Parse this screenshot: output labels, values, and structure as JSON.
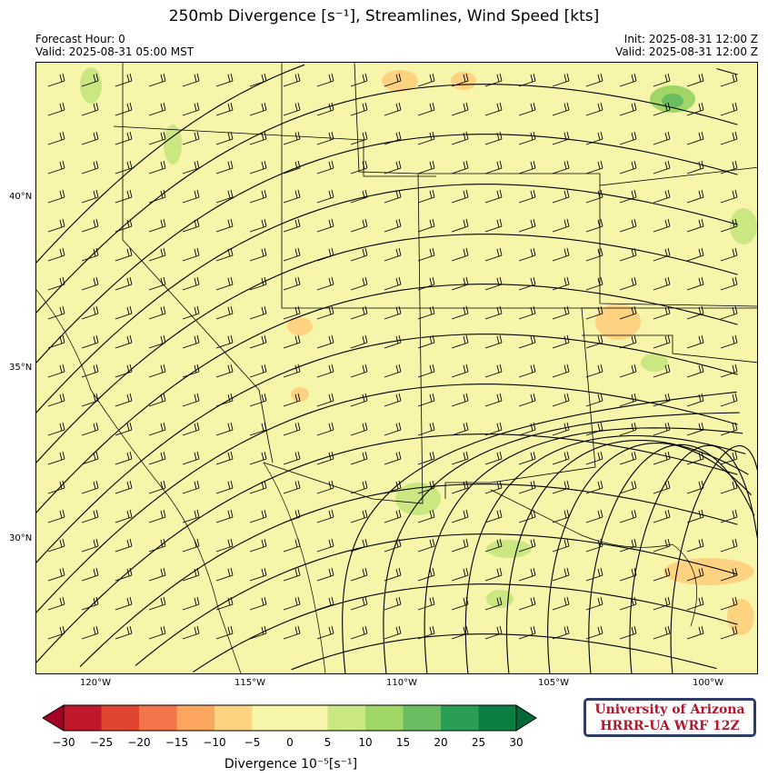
{
  "header": {
    "title": "250mb Divergence [s⁻¹], Streamlines, Wind Speed [kts]",
    "forecast_hour": "Forecast Hour: 0",
    "valid_local": "Valid: 2025-08-31 05:00 MST",
    "init": "Init: 2025-08-31 12:00 Z",
    "valid_utc": "Valid: 2025-08-31 12:00 Z"
  },
  "map": {
    "lat_labels": [
      "40°N",
      "35°N",
      "30°N"
    ],
    "lon_labels": [
      "120°W",
      "115°W",
      "110°W",
      "105°W",
      "100°W"
    ],
    "background_color": "#f6f5a9",
    "layers": [
      "divergence-fill",
      "streamlines",
      "wind-barbs",
      "state-borders",
      "coastlines"
    ]
  },
  "colorbar": {
    "ticks": [
      "−30",
      "−25",
      "−20",
      "−15",
      "−10",
      "−5",
      "0",
      "5",
      "10",
      "15",
      "20",
      "25",
      "30"
    ],
    "colors": [
      "#c0172b",
      "#e04530",
      "#f4744a",
      "#fba65e",
      "#fdd381",
      "#f6f5a9",
      "#f6f5a9",
      "#cbe781",
      "#a0d568",
      "#6bbd62",
      "#2b9e56",
      "#0b7e43"
    ],
    "under_color": "#a50026",
    "over_color": "#006837",
    "label": "Divergence 10⁻⁵[s⁻¹]"
  },
  "logo": {
    "line1": "University of Arizona",
    "line2": "HRRR-UA WRF 12Z"
  }
}
